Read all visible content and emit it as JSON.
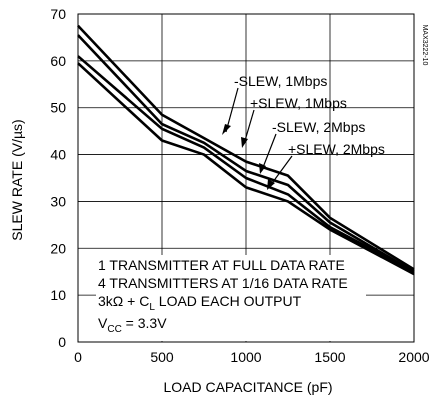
{
  "figure_code": "MAX3222-10",
  "chart_data": {
    "type": "line",
    "xlabel": "LOAD CAPACITANCE (pF)",
    "ylabel": "SLEW RATE (V/µs)",
    "xlim": [
      0,
      2000
    ],
    "ylim": [
      0,
      70
    ],
    "x_ticks": [
      0,
      500,
      1000,
      1500,
      2000
    ],
    "y_ticks": [
      0,
      10,
      20,
      30,
      40,
      50,
      60,
      70
    ],
    "grid": true,
    "x": [
      0,
      500,
      750,
      1000,
      1250,
      1500,
      2000
    ],
    "series": [
      {
        "name": "-SLEW, 1Mbps",
        "values": [
          67.5,
          48.5,
          43.5,
          38.5,
          35.5,
          26.5,
          15.5
        ]
      },
      {
        "name": "+SLEW, 1Mbps",
        "values": [
          65.5,
          46.5,
          42.5,
          36.5,
          33.5,
          25.5,
          15.0
        ]
      },
      {
        "name": "-SLEW, 2Mbps",
        "values": [
          61.0,
          45.5,
          41.5,
          35.0,
          31.5,
          24.5,
          15.0
        ]
      },
      {
        "name": "+SLEW, 2Mbps",
        "values": [
          59.5,
          43.0,
          40.0,
          33.0,
          30.0,
          24.0,
          14.5
        ]
      }
    ],
    "annotations": [
      "1 TRANSMITTER AT FULL DATA RATE",
      "4 TRANSMITTERS AT 1/16 DATA RATE",
      "3kΩ + C",
      "L",
      " LOAD EACH OUTPUT",
      "V",
      "CC",
      " = 3.3V"
    ]
  }
}
